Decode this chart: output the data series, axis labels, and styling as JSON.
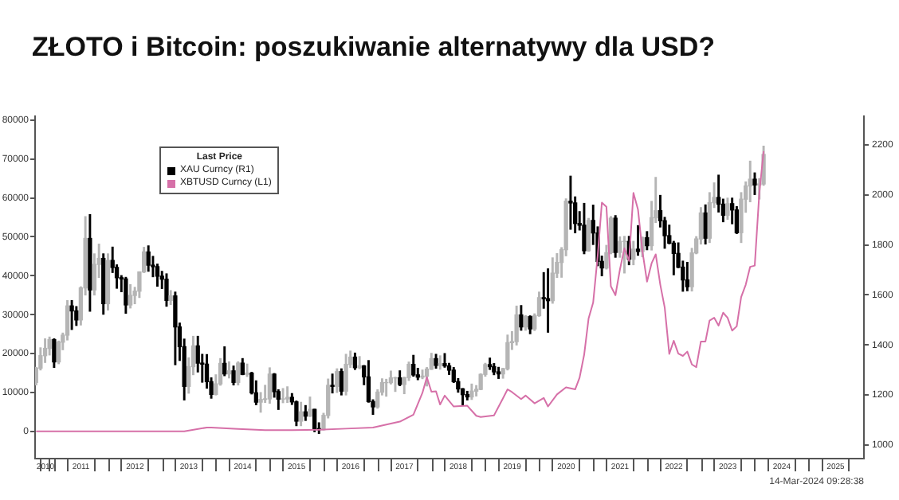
{
  "chart_data": {
    "type": "candlestick",
    "title": "ZŁOTO i Bitcoin: poszukiwanie alternatywy dla USD?",
    "legend": "top left",
    "legend_title": "Last Price",
    "xlim": [
      "2010-08-25",
      "2026-01-10"
    ],
    "xticks": [
      {
        "value": "2010-11-03",
        "label": "2010"
      },
      {
        "value": "2011-01-01",
        "label": null
      },
      {
        "value": "2011-07-02",
        "label": "2011"
      },
      {
        "value": "2012-01-01",
        "label": null
      },
      {
        "value": "2012-07-02",
        "label": "2012"
      },
      {
        "value": "2013-01-01",
        "label": null
      },
      {
        "value": "2013-07-02",
        "label": "2013"
      },
      {
        "value": "2014-01-01",
        "label": null
      },
      {
        "value": "2014-07-02",
        "label": "2014"
      },
      {
        "value": "2015-01-01",
        "label": null
      },
      {
        "value": "2015-07-02",
        "label": "2015"
      },
      {
        "value": "2016-01-01",
        "label": null
      },
      {
        "value": "2016-07-02",
        "label": "2016"
      },
      {
        "value": "2017-01-01",
        "label": null
      },
      {
        "value": "2017-07-02",
        "label": "2017"
      },
      {
        "value": "2018-01-01",
        "label": null
      },
      {
        "value": "2018-07-02",
        "label": "2018"
      },
      {
        "value": "2019-01-01",
        "label": null
      },
      {
        "value": "2019-07-02",
        "label": "2019"
      },
      {
        "value": "2020-01-01",
        "label": null
      },
      {
        "value": "2020-07-02",
        "label": "2020"
      },
      {
        "value": "2021-01-01",
        "label": null
      },
      {
        "value": "2021-07-02",
        "label": "2021"
      },
      {
        "value": "2022-01-01",
        "label": null
      },
      {
        "value": "2022-07-02",
        "label": "2022"
      },
      {
        "value": "2023-01-01",
        "label": null
      },
      {
        "value": "2023-07-02",
        "label": "2023"
      },
      {
        "value": "2024-01-01",
        "label": null
      },
      {
        "value": "2024-07-02",
        "label": "2024"
      },
      {
        "value": "2025-01-01",
        "label": null
      },
      {
        "value": "2025-07-02",
        "label": "2025"
      }
    ],
    "ylim": [
      -7000,
      81000
    ],
    "yticks": [
      0,
      10000,
      20000,
      30000,
      40000,
      50000,
      60000,
      70000,
      80000
    ],
    "y2lim": [
      945,
      2315
    ],
    "y2ticks": [
      1000,
      1200,
      1400,
      1600,
      1800,
      2000,
      2200
    ],
    "annotations": [
      "14-Mar-2024 09:28:38"
    ],
    "series": [
      {
        "type": "candlestick",
        "name": "XAU Curncy (R1)",
        "color": "#000000",
        "axis": "y2",
        "colors": [
          "#b5b5b5",
          "#b5b5b5",
          "#b5b5b5",
          "#b5b5b5",
          "#000000",
          "#b5b5b5",
          "#b5b5b5",
          "#b5b5b5",
          "#000000",
          "#000000",
          "#b5b5b5",
          "#b5b5b5",
          "#000000",
          "#b5b5b5",
          "#b5b5b5",
          "#000000",
          "#b5b5b5",
          "#000000",
          "#000000",
          "#000000",
          "#000000",
          "#b5b5b5",
          "#b5b5b5",
          "#b5b5b5",
          "#b5b5b5",
          "#000000",
          "#000000",
          "#000000",
          "#000000",
          "#000000",
          "#b5b5b5",
          "#000000",
          "#000000",
          "#000000",
          "#b5b5b5",
          "#b5b5b5",
          "#000000",
          "#000000",
          "#000000",
          "#000000",
          "#b5b5b5",
          "#b5b5b5",
          "#000000",
          "#b5b5b5",
          "#000000",
          "#b5b5b5",
          "#000000",
          "#b5b5b5",
          "#000000",
          "#000000",
          "#b5b5b5",
          "#b5b5b5",
          "#b5b5b5",
          "#000000",
          "#000000",
          "#b5b5b5",
          "#b5b5b5",
          "#000000",
          "#000000",
          "#b5b5b5",
          "#000000",
          "#b5b5b5",
          "#000000",
          "#000000",
          "#b5b5b5",
          "#b5b5b5",
          "#000000",
          "#b5b5b5",
          "#000000",
          "#b5b5b5",
          "#b5b5b5",
          "#000000",
          "#b5b5b5",
          "#000000",
          "#000000",
          "#000000",
          "#b5b5b5",
          "#b5b5b5",
          "#b5b5b5",
          "#b5b5b5",
          "#b5b5b5",
          "#000000",
          "#b5b5b5",
          "#b5b5b5",
          "#000000",
          "#000000",
          "#b5b5b5",
          "#b5b5b5",
          "#b5b5b5",
          "#000000",
          "#b5b5b5",
          "#000000",
          "#000000",
          "#000000",
          "#000000",
          "#000000",
          "#000000",
          "#b5b5b5",
          "#b5b5b5",
          "#b5b5b5",
          "#b5b5b5",
          "#000000",
          "#000000",
          "#000000",
          "#b5b5b5",
          "#b5b5b5",
          "#b5b5b5",
          "#b5b5b5",
          "#000000",
          "#b5b5b5",
          "#000000",
          "#b5b5b5",
          "#b5b5b5",
          "#000000",
          "#000000",
          "#b5b5b5",
          "#b5b5b5",
          "#b5b5b5",
          "#b5b5b5",
          "#000000",
          "#000000",
          "#000000",
          "#000000",
          "#b5b5b5",
          "#000000",
          "#000000",
          "#000000",
          "#b5b5b5",
          "#b5b5b5",
          "#000000",
          "#b5b5b5",
          "#b5b5b5",
          "#000000",
          "#b5b5b5",
          "#000000",
          "#b5b5b5",
          "#000000",
          "#b5b5b5",
          "#b5b5b5",
          "#000000",
          "#000000",
          "#000000",
          "#000000",
          "#000000",
          "#000000",
          "#000000",
          "#b5b5b5",
          "#b5b5b5",
          "#b5b5b5",
          "#000000",
          "#b5b5b5",
          "#b5b5b5",
          "#000000",
          "#000000",
          "#b5b5b5",
          "#000000",
          "#000000",
          "#b5b5b5",
          "#b5b5b5",
          "#b5b5b5",
          "#000000",
          "#b5b5b5",
          "#b5b5b5"
        ],
        "x": [
          "2010-09",
          "2010-10",
          "2010-11",
          "2010-12",
          "2011-01",
          "2011-02",
          "2011-03",
          "2011-04",
          "2011-05",
          "2011-06",
          "2011-07",
          "2011-08",
          "2011-09",
          "2011-10",
          "2011-11",
          "2011-12",
          "2012-01",
          "2012-02",
          "2012-03",
          "2012-04",
          "2012-05",
          "2012-06",
          "2012-07",
          "2012-08",
          "2012-09",
          "2012-10",
          "2012-11",
          "2012-12",
          "2013-01",
          "2013-02",
          "2013-03",
          "2013-04",
          "2013-05",
          "2013-06",
          "2013-07",
          "2013-08",
          "2013-09",
          "2013-10",
          "2013-11",
          "2013-12",
          "2014-01",
          "2014-02",
          "2014-03",
          "2014-04",
          "2014-05",
          "2014-06",
          "2014-07",
          "2014-08",
          "2014-09",
          "2014-10",
          "2014-11",
          "2014-12",
          "2015-01",
          "2015-02",
          "2015-03",
          "2015-04",
          "2015-05",
          "2015-06",
          "2015-07",
          "2015-08",
          "2015-09",
          "2015-10",
          "2015-11",
          "2015-12",
          "2016-01",
          "2016-02",
          "2016-03",
          "2016-04",
          "2016-05",
          "2016-06",
          "2016-07",
          "2016-08",
          "2016-09",
          "2016-10",
          "2016-11",
          "2016-12",
          "2017-01",
          "2017-02",
          "2017-03",
          "2017-04",
          "2017-05",
          "2017-06",
          "2017-07",
          "2017-08",
          "2017-09",
          "2017-10",
          "2017-11",
          "2017-12",
          "2018-01",
          "2018-02",
          "2018-03",
          "2018-04",
          "2018-05",
          "2018-06",
          "2018-07",
          "2018-08",
          "2018-09",
          "2018-10",
          "2018-11",
          "2018-12",
          "2019-01",
          "2019-02",
          "2019-03",
          "2019-04",
          "2019-05",
          "2019-06",
          "2019-07",
          "2019-08",
          "2019-09",
          "2019-10",
          "2019-11",
          "2019-12",
          "2020-01",
          "2020-02",
          "2020-03",
          "2020-04",
          "2020-05",
          "2020-06",
          "2020-07",
          "2020-08",
          "2020-09",
          "2020-10",
          "2020-11",
          "2020-12",
          "2021-01",
          "2021-02",
          "2021-03",
          "2021-04",
          "2021-05",
          "2021-06",
          "2021-07",
          "2021-08",
          "2021-09",
          "2021-10",
          "2021-11",
          "2021-12",
          "2022-01",
          "2022-02",
          "2022-03",
          "2022-04",
          "2022-05",
          "2022-06",
          "2022-07",
          "2022-08",
          "2022-09",
          "2022-10",
          "2022-11",
          "2022-12",
          "2023-01",
          "2023-02",
          "2023-03",
          "2023-04",
          "2023-05",
          "2023-06",
          "2023-07",
          "2023-08",
          "2023-09",
          "2023-10",
          "2023-11",
          "2023-12",
          "2024-01",
          "2024-02",
          "2024-03"
        ],
        "ohlc": [
          [
            1250,
            1310,
            1240,
            1307
          ],
          [
            1307,
            1388,
            1300,
            1357
          ],
          [
            1357,
            1424,
            1330,
            1386
          ],
          [
            1386,
            1431,
            1360,
            1421
          ],
          [
            1421,
            1424,
            1310,
            1332
          ],
          [
            1332,
            1415,
            1325,
            1411
          ],
          [
            1411,
            1447,
            1381,
            1439
          ],
          [
            1439,
            1577,
            1420,
            1556
          ],
          [
            1556,
            1577,
            1462,
            1536
          ],
          [
            1536,
            1553,
            1478,
            1500
          ],
          [
            1500,
            1632,
            1480,
            1628
          ],
          [
            1628,
            1913,
            1600,
            1826
          ],
          [
            1826,
            1921,
            1535,
            1620
          ],
          [
            1620,
            1764,
            1600,
            1722
          ],
          [
            1722,
            1803,
            1670,
            1746
          ],
          [
            1746,
            1764,
            1523,
            1565
          ],
          [
            1565,
            1764,
            1540,
            1738
          ],
          [
            1738,
            1791,
            1690,
            1710
          ],
          [
            1710,
            1720,
            1627,
            1669
          ],
          [
            1669,
            1677,
            1613,
            1664
          ],
          [
            1664,
            1670,
            1527,
            1560
          ],
          [
            1560,
            1641,
            1548,
            1598
          ],
          [
            1598,
            1630,
            1565,
            1615
          ],
          [
            1615,
            1692,
            1590,
            1692
          ],
          [
            1692,
            1790,
            1690,
            1772
          ],
          [
            1772,
            1796,
            1695,
            1719
          ],
          [
            1719,
            1754,
            1673,
            1713
          ],
          [
            1713,
            1723,
            1635,
            1675
          ],
          [
            1675,
            1694,
            1626,
            1663
          ],
          [
            1663,
            1684,
            1555,
            1578
          ],
          [
            1578,
            1617,
            1562,
            1596
          ],
          [
            1596,
            1611,
            1321,
            1472
          ],
          [
            1472,
            1487,
            1338,
            1393
          ],
          [
            1393,
            1423,
            1180,
            1234
          ],
          [
            1234,
            1348,
            1207,
            1313
          ],
          [
            1313,
            1434,
            1281,
            1396
          ],
          [
            1396,
            1434,
            1292,
            1327
          ],
          [
            1327,
            1362,
            1251,
            1323
          ],
          [
            1323,
            1361,
            1227,
            1253
          ],
          [
            1253,
            1268,
            1187,
            1202
          ],
          [
            1202,
            1280,
            1200,
            1244
          ],
          [
            1244,
            1345,
            1239,
            1326
          ],
          [
            1326,
            1392,
            1277,
            1284
          ],
          [
            1284,
            1332,
            1268,
            1296
          ],
          [
            1296,
            1315,
            1240,
            1250
          ],
          [
            1250,
            1332,
            1240,
            1327
          ],
          [
            1327,
            1345,
            1281,
            1282
          ],
          [
            1282,
            1323,
            1274,
            1287
          ],
          [
            1287,
            1290,
            1204,
            1208
          ],
          [
            1208,
            1256,
            1161,
            1171
          ],
          [
            1171,
            1209,
            1131,
            1182
          ],
          [
            1182,
            1238,
            1170,
            1184
          ],
          [
            1184,
            1308,
            1167,
            1283
          ],
          [
            1283,
            1285,
            1191,
            1213
          ],
          [
            1213,
            1220,
            1142,
            1183
          ],
          [
            1183,
            1225,
            1169,
            1184
          ],
          [
            1184,
            1232,
            1170,
            1190
          ],
          [
            1190,
            1205,
            1162,
            1172
          ],
          [
            1172,
            1175,
            1077,
            1095
          ],
          [
            1095,
            1170,
            1077,
            1132
          ],
          [
            1132,
            1157,
            1098,
            1115
          ],
          [
            1115,
            1191,
            1114,
            1142
          ],
          [
            1142,
            1142,
            1053,
            1065
          ],
          [
            1065,
            1088,
            1046,
            1061
          ],
          [
            1061,
            1126,
            1060,
            1118
          ],
          [
            1118,
            1263,
            1108,
            1238
          ],
          [
            1238,
            1283,
            1208,
            1234
          ],
          [
            1234,
            1304,
            1210,
            1293
          ],
          [
            1293,
            1304,
            1200,
            1215
          ],
          [
            1215,
            1362,
            1200,
            1322
          ],
          [
            1322,
            1375,
            1310,
            1351
          ],
          [
            1351,
            1367,
            1302,
            1309
          ],
          [
            1309,
            1353,
            1305,
            1316
          ],
          [
            1316,
            1317,
            1241,
            1272
          ],
          [
            1272,
            1337,
            1171,
            1173
          ],
          [
            1173,
            1180,
            1122,
            1152
          ],
          [
            1152,
            1220,
            1147,
            1211
          ],
          [
            1211,
            1264,
            1200,
            1249
          ],
          [
            1249,
            1262,
            1195,
            1249
          ],
          [
            1249,
            1295,
            1244,
            1268
          ],
          [
            1268,
            1270,
            1214,
            1268
          ],
          [
            1268,
            1296,
            1237,
            1242
          ],
          [
            1242,
            1270,
            1205,
            1269
          ],
          [
            1269,
            1331,
            1258,
            1322
          ],
          [
            1322,
            1358,
            1275,
            1280
          ],
          [
            1280,
            1306,
            1261,
            1271
          ],
          [
            1271,
            1299,
            1265,
            1275
          ],
          [
            1275,
            1309,
            1236,
            1303
          ],
          [
            1303,
            1366,
            1302,
            1345
          ],
          [
            1345,
            1362,
            1307,
            1318
          ],
          [
            1318,
            1356,
            1303,
            1325
          ],
          [
            1325,
            1365,
            1311,
            1316
          ],
          [
            1316,
            1326,
            1282,
            1299
          ],
          [
            1299,
            1309,
            1250,
            1253
          ],
          [
            1253,
            1265,
            1211,
            1224
          ],
          [
            1224,
            1225,
            1160,
            1201
          ],
          [
            1201,
            1214,
            1180,
            1192
          ],
          [
            1192,
            1243,
            1182,
            1215
          ],
          [
            1215,
            1237,
            1196,
            1222
          ],
          [
            1222,
            1284,
            1221,
            1282
          ],
          [
            1282,
            1326,
            1275,
            1321
          ],
          [
            1321,
            1347,
            1302,
            1313
          ],
          [
            1313,
            1325,
            1281,
            1292
          ],
          [
            1292,
            1310,
            1266,
            1284
          ],
          [
            1284,
            1306,
            1267,
            1305
          ],
          [
            1305,
            1439,
            1300,
            1409
          ],
          [
            1409,
            1453,
            1382,
            1413
          ],
          [
            1413,
            1555,
            1400,
            1520
          ],
          [
            1520,
            1557,
            1459,
            1472
          ],
          [
            1472,
            1517,
            1459,
            1513
          ],
          [
            1513,
            1516,
            1445,
            1464
          ],
          [
            1464,
            1524,
            1458,
            1517
          ],
          [
            1517,
            1611,
            1515,
            1589
          ],
          [
            1589,
            1689,
            1547,
            1585
          ],
          [
            1585,
            1704,
            1451,
            1577
          ],
          [
            1577,
            1748,
            1567,
            1687
          ],
          [
            1687,
            1765,
            1670,
            1730
          ],
          [
            1730,
            1789,
            1671,
            1781
          ],
          [
            1781,
            1984,
            1757,
            1975
          ],
          [
            1975,
            2075,
            1863,
            1968
          ],
          [
            1968,
            1992,
            1849,
            1886
          ],
          [
            1886,
            1933,
            1860,
            1879
          ],
          [
            1879,
            1966,
            1765,
            1777
          ],
          [
            1777,
            1906,
            1775,
            1898
          ],
          [
            1898,
            1959,
            1802,
            1848
          ],
          [
            1848,
            1872,
            1717,
            1734
          ],
          [
            1734,
            1755,
            1677,
            1708
          ],
          [
            1708,
            1798,
            1704,
            1769
          ],
          [
            1769,
            1913,
            1765,
            1907
          ],
          [
            1907,
            1917,
            1751,
            1770
          ],
          [
            1770,
            1832,
            1751,
            1814
          ],
          [
            1814,
            1834,
            1688,
            1814
          ],
          [
            1814,
            1834,
            1721,
            1743
          ],
          [
            1743,
            1814,
            1721,
            1783
          ],
          [
            1783,
            1877,
            1759,
            1774
          ],
          [
            1774,
            1831,
            1753,
            1829
          ],
          [
            1829,
            1853,
            1781,
            1797
          ],
          [
            1797,
            1974,
            1780,
            1909
          ],
          [
            1909,
            2070,
            1890,
            1937
          ],
          [
            1937,
            1998,
            1872,
            1897
          ],
          [
            1897,
            1910,
            1787,
            1837
          ],
          [
            1837,
            1879,
            1805,
            1807
          ],
          [
            1807,
            1814,
            1681,
            1766
          ],
          [
            1766,
            1808,
            1709,
            1711
          ],
          [
            1711,
            1735,
            1615,
            1660
          ],
          [
            1660,
            1730,
            1617,
            1633
          ],
          [
            1633,
            1786,
            1616,
            1768
          ],
          [
            1768,
            1833,
            1765,
            1824
          ],
          [
            1824,
            1949,
            1804,
            1928
          ],
          [
            1928,
            1960,
            1804,
            1827
          ],
          [
            1827,
            2009,
            1810,
            1969
          ],
          [
            1969,
            2048,
            1950,
            1990
          ],
          [
            1990,
            2079,
            1932,
            1963
          ],
          [
            1963,
            1983,
            1893,
            1919
          ],
          [
            1919,
            1987,
            1903,
            1965
          ],
          [
            1965,
            1987,
            1885,
            1940
          ],
          [
            1940,
            1953,
            1846,
            1849
          ],
          [
            1849,
            2009,
            1810,
            1983
          ],
          [
            1983,
            2052,
            1931,
            2036
          ],
          [
            2036,
            2135,
            1973,
            2063
          ],
          [
            2063,
            2088,
            2002,
            2040
          ],
          [
            2040,
            2065,
            1984,
            2044
          ],
          [
            2044,
            2195,
            2039,
            2162
          ]
        ]
      },
      {
        "type": "line",
        "name": "XBTUSD Curncy (L1)",
        "color": "#d670a8",
        "x": [
          "2010-09",
          "2011-06",
          "2012-12",
          "2013-06",
          "2013-11",
          "2013-12",
          "2014-06",
          "2014-12",
          "2015-06",
          "2015-12",
          "2016-06",
          "2016-12",
          "2017-06",
          "2017-09",
          "2017-11",
          "2017-12",
          "2018-01",
          "2018-02",
          "2018-03",
          "2018-04",
          "2018-06",
          "2018-09",
          "2018-11",
          "2018-12",
          "2019-03",
          "2019-05",
          "2019-06",
          "2019-07",
          "2019-09",
          "2019-10",
          "2019-12",
          "2020-02",
          "2020-03",
          "2020-05",
          "2020-07",
          "2020-09",
          "2020-10",
          "2020-11",
          "2020-12",
          "2021-01",
          "2021-02",
          "2021-03",
          "2021-04",
          "2021-05",
          "2021-06",
          "2021-07",
          "2021-08",
          "2021-09",
          "2021-10",
          "2021-11",
          "2021-12",
          "2022-01",
          "2022-02",
          "2022-03",
          "2022-04",
          "2022-05",
          "2022-06",
          "2022-07",
          "2022-08",
          "2022-09",
          "2022-10",
          "2022-11",
          "2022-12",
          "2023-01",
          "2023-02",
          "2023-03",
          "2023-04",
          "2023-05",
          "2023-06",
          "2023-07",
          "2023-08",
          "2023-09",
          "2023-10",
          "2023-11",
          "2023-12",
          "2024-01",
          "2024-02",
          "2024-03"
        ],
        "values": [
          0,
          0,
          0,
          0,
          1000,
          1000,
          600,
          300,
          300,
          400,
          700,
          1000,
          2500,
          4300,
          9900,
          13900,
          10200,
          10300,
          6900,
          9200,
          6400,
          6600,
          4000,
          3700,
          4100,
          8500,
          10800,
          10100,
          8300,
          9200,
          7200,
          8600,
          6400,
          9500,
          11300,
          10800,
          13800,
          19700,
          29000,
          33100,
          45200,
          58800,
          57700,
          37300,
          35000,
          41500,
          47100,
          43800,
          61300,
          57000,
          46300,
          38500,
          43200,
          45500,
          37700,
          31800,
          19900,
          23300,
          20000,
          19400,
          20500,
          17200,
          16500,
          23100,
          23100,
          28500,
          29200,
          27200,
          30500,
          29200,
          25900,
          27000,
          34500,
          37700,
          42300,
          42600,
          61200,
          72000
        ]
      }
    ]
  }
}
